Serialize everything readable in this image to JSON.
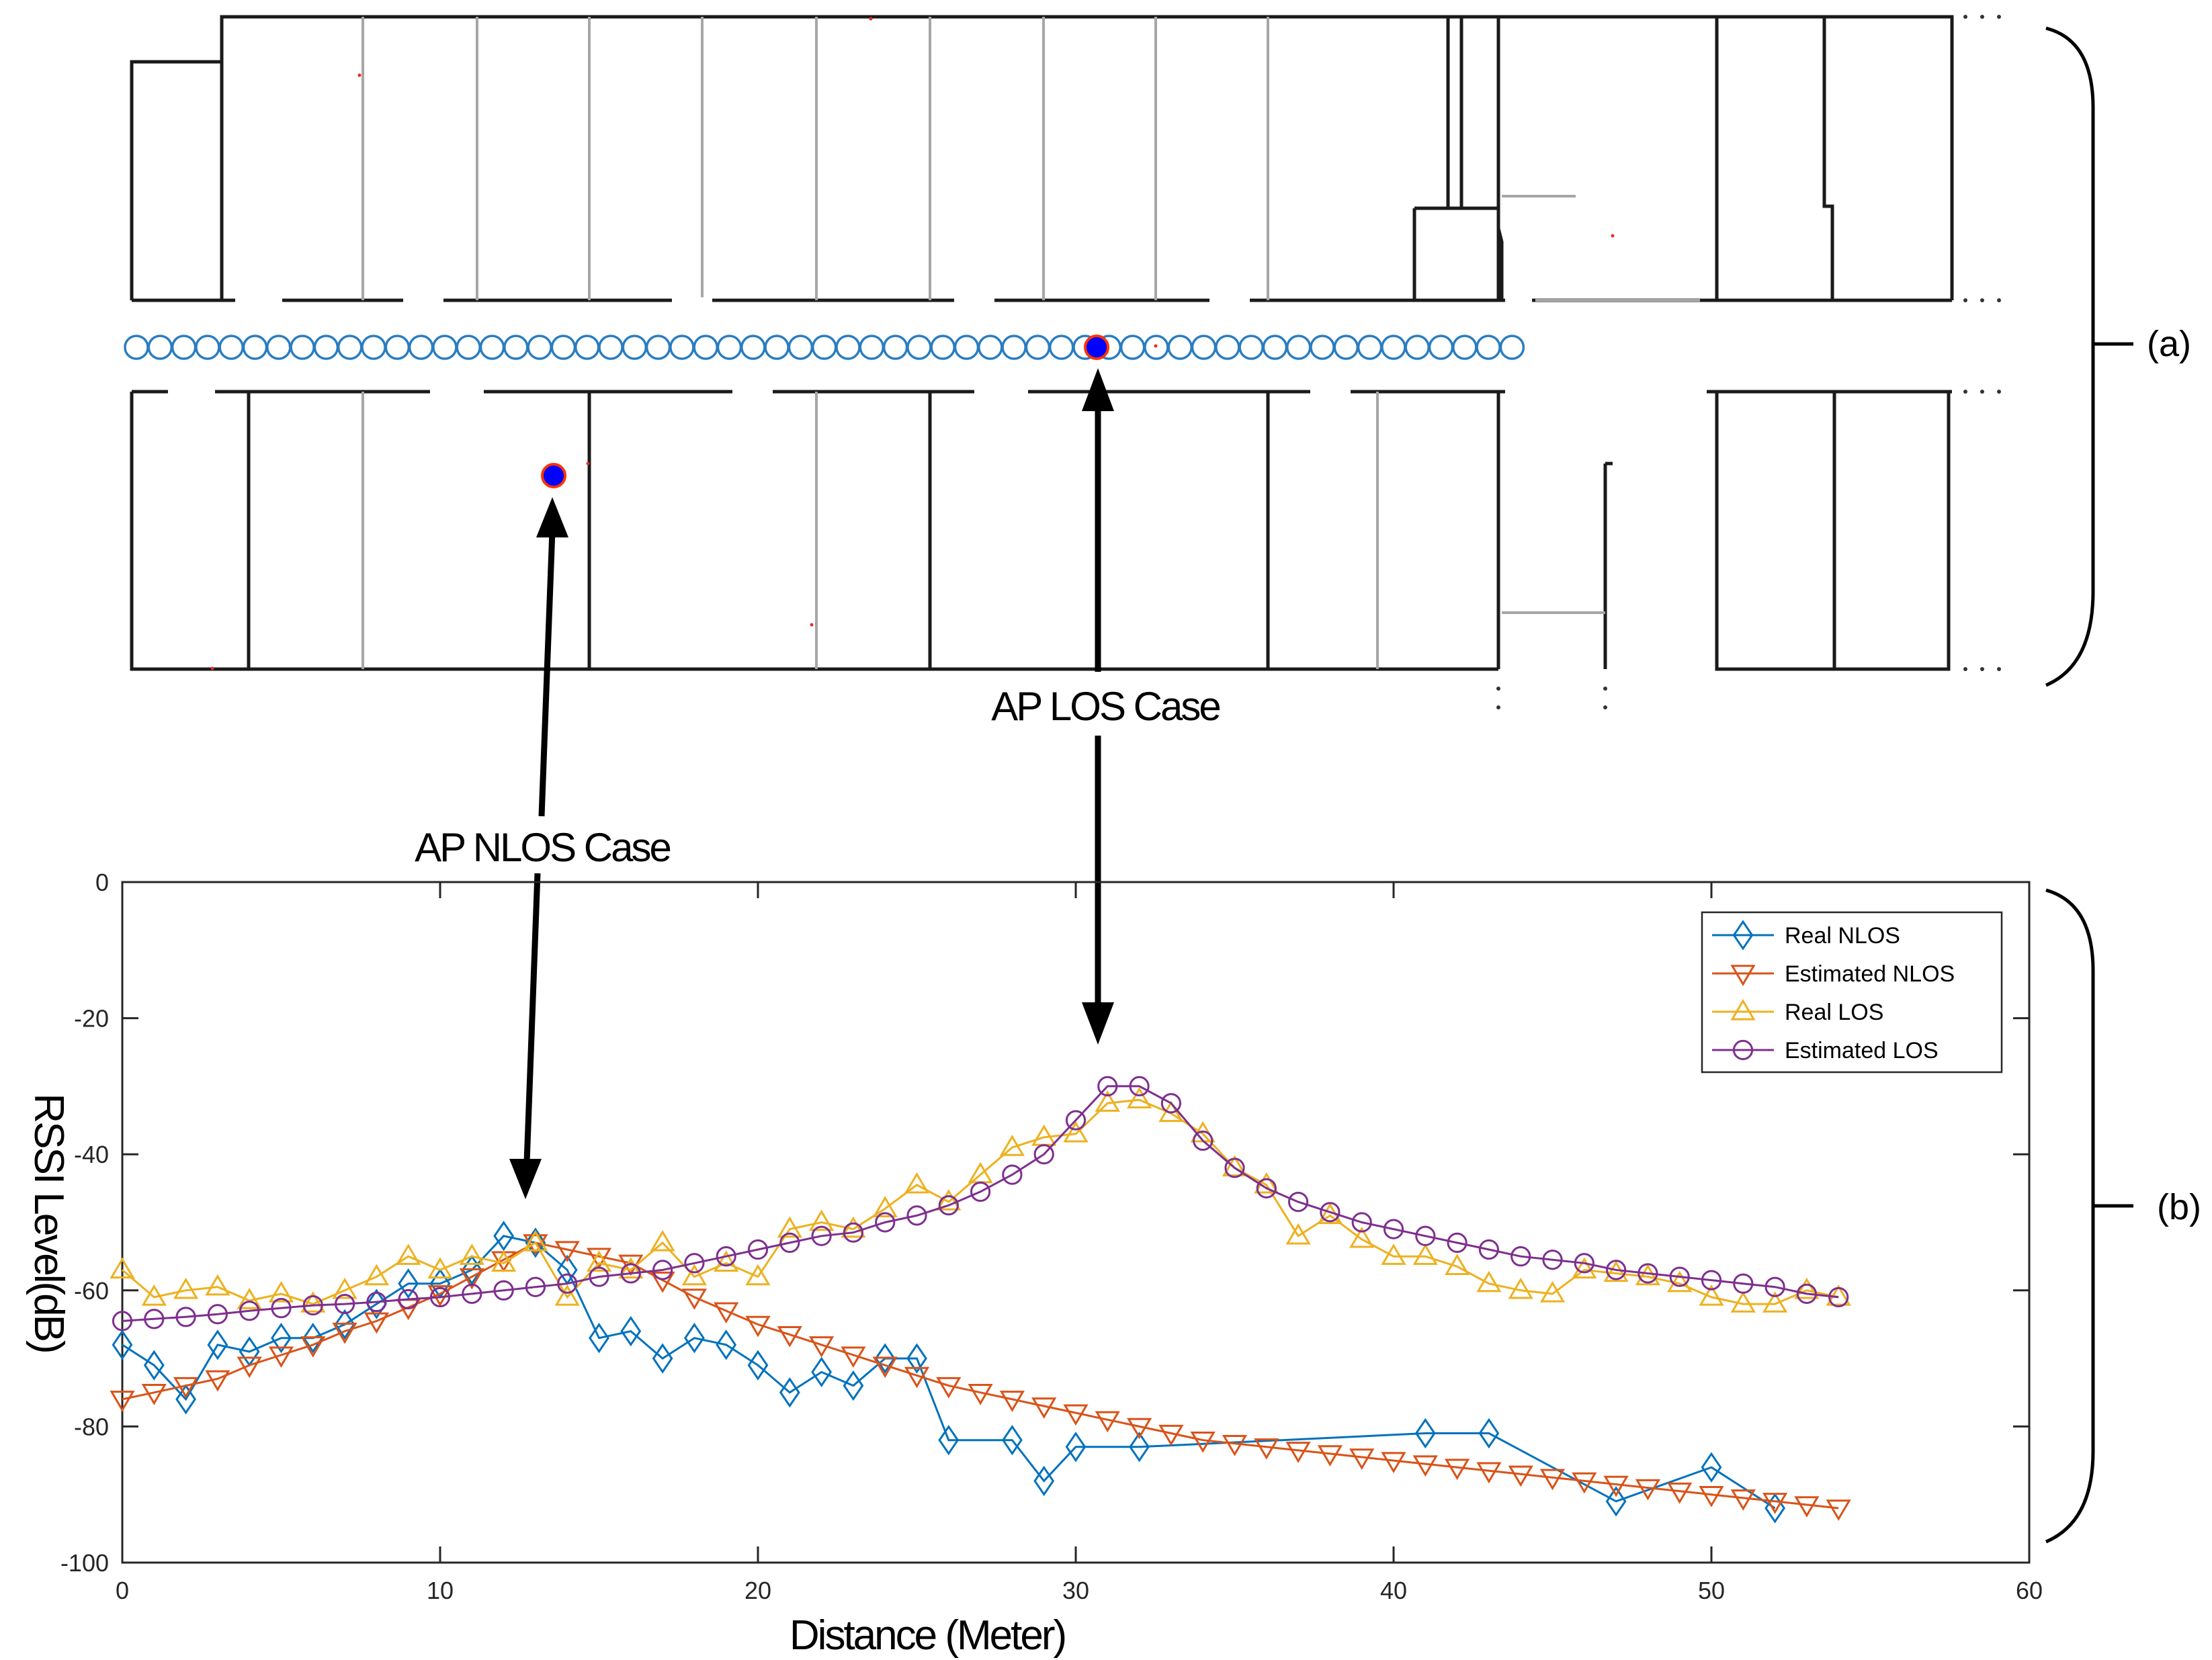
{
  "annotations": {
    "panel_a": "(a)",
    "panel_b": "(b)",
    "nlos_case": "AP NLOS Case",
    "los_case": "AP LOS Case"
  },
  "floor_plan": {
    "walkway_points": 59,
    "access_points": [
      "AP LOS Case",
      "AP NLOS Case"
    ],
    "colors": {
      "walls": "#1a1a1a",
      "partitions": "#a6a6a6",
      "points": "#2a7dc0",
      "ap_fill": "#0000ff",
      "ap_edge": "#ff3300"
    }
  },
  "chart_data": {
    "type": "line",
    "title": "",
    "xlabel": "Distance (Meter)",
    "ylabel": "RSSI Level(dB)",
    "xlim": [
      0,
      60
    ],
    "ylim": [
      -100,
      0
    ],
    "xticks": [
      "0",
      "10",
      "20",
      "30",
      "40",
      "50",
      "60"
    ],
    "yticks": [
      "0",
      "-20",
      "-40",
      "-60",
      "-80",
      "-100"
    ],
    "legend_position": "top-right",
    "grid": false,
    "series": [
      {
        "name": "Real NLOS",
        "color": "#0072BD",
        "marker": "diamond",
        "x": [
          0,
          1,
          2,
          3,
          4,
          5,
          6,
          7,
          8,
          9,
          10,
          11,
          12,
          13,
          14,
          15,
          16,
          17,
          18,
          19,
          20,
          21,
          22,
          23,
          24,
          25,
          26,
          28,
          29,
          30,
          32,
          41,
          43,
          47,
          50,
          52
        ],
        "y": [
          -68,
          -71,
          -76,
          -68,
          -69,
          -67,
          -67,
          -65,
          -62,
          -59,
          -59,
          -57,
          -52,
          -53,
          -57,
          -67,
          -66,
          -70,
          -67,
          -68,
          -71,
          -75,
          -72,
          -74,
          -70,
          -70,
          -82,
          -82,
          -88,
          -83,
          -83,
          -81,
          -81,
          -91,
          -86,
          -92
        ]
      },
      {
        "name": "Estimated NLOS",
        "color": "#D95319",
        "marker": "triangle-down",
        "x": [
          0,
          1,
          2,
          3,
          4,
          5,
          6,
          7,
          8,
          9,
          10,
          11,
          12,
          13,
          14,
          15,
          16,
          17,
          18,
          19,
          20,
          21,
          22,
          23,
          24,
          25,
          26,
          27,
          28,
          29,
          30,
          31,
          32,
          33,
          34,
          35,
          36,
          37,
          38,
          39,
          40,
          41,
          42,
          43,
          44,
          45,
          46,
          47,
          48,
          49,
          50,
          51,
          52,
          53,
          54
        ],
        "y": [
          -76,
          -75,
          -74,
          -73,
          -71,
          -69.5,
          -68,
          -66,
          -64.5,
          -62.5,
          -60.5,
          -58,
          -55.5,
          -53,
          -54,
          -55,
          -56,
          -58.5,
          -61,
          -63,
          -65,
          -66.5,
          -68,
          -69.5,
          -71,
          -72.5,
          -74,
          -75,
          -76,
          -77,
          -78,
          -79,
          -80,
          -81,
          -82,
          -82.5,
          -83,
          -83.5,
          -84,
          -84.5,
          -85,
          -85.5,
          -86,
          -86.5,
          -87,
          -87.5,
          -88,
          -88.5,
          -89,
          -89.5,
          -90,
          -90.5,
          -91,
          -91.5,
          -92
        ]
      },
      {
        "name": "Real LOS",
        "color": "#EDB120",
        "marker": "triangle-up",
        "x": [
          0,
          1,
          2,
          3,
          4,
          5,
          6,
          7,
          8,
          9,
          10,
          11,
          12,
          13,
          14,
          15,
          16,
          17,
          18,
          19,
          20,
          21,
          22,
          23,
          24,
          25,
          26,
          27,
          28,
          29,
          30,
          31,
          32,
          33,
          34,
          35,
          36,
          37,
          38,
          39,
          40,
          41,
          42,
          43,
          44,
          45,
          46,
          47,
          48,
          49,
          50,
          51,
          52,
          53,
          54
        ],
        "y": [
          -57,
          -61,
          -60,
          -59.5,
          -61.5,
          -60.5,
          -62,
          -60,
          -58,
          -55,
          -57,
          -55,
          -56,
          -53,
          -61,
          -56,
          -57,
          -53,
          -58,
          -56,
          -58,
          -51,
          -50,
          -51,
          -48,
          -44.5,
          -47,
          -43,
          -39,
          -37.5,
          -37,
          -32.5,
          -32,
          -34,
          -37,
          -42,
          -44.5,
          -52,
          -49,
          -52.5,
          -55,
          -55,
          -56.5,
          -59,
          -60,
          -60.5,
          -57,
          -57.5,
          -58,
          -59,
          -61,
          -62,
          -62,
          -60,
          -61
        ]
      },
      {
        "name": "Estimated LOS",
        "color": "#7E2F8E",
        "marker": "circle",
        "x": [
          0,
          1,
          2,
          3,
          4,
          5,
          6,
          7,
          8,
          9,
          10,
          11,
          12,
          13,
          14,
          15,
          16,
          17,
          18,
          19,
          20,
          21,
          22,
          23,
          24,
          25,
          26,
          27,
          28,
          29,
          30,
          31,
          32,
          33,
          34,
          35,
          36,
          37,
          38,
          39,
          40,
          41,
          42,
          43,
          44,
          45,
          46,
          47,
          48,
          49,
          50,
          51,
          52,
          53,
          54
        ],
        "y": [
          -64.5,
          -64.2,
          -63.9,
          -63.5,
          -63,
          -62.6,
          -62.2,
          -62,
          -61.7,
          -61.3,
          -61,
          -60.5,
          -60,
          -59.5,
          -59,
          -58,
          -57.5,
          -57,
          -56,
          -55,
          -54,
          -53,
          -52,
          -51.5,
          -50,
          -49,
          -47.5,
          -45.5,
          -43,
          -40,
          -35,
          -30,
          -30,
          -32.5,
          -38,
          -42,
          -45,
          -47,
          -48.5,
          -50,
          -51,
          -52,
          -53,
          -54,
          -55,
          -55.5,
          -56,
          -57,
          -57.5,
          -58,
          -58.5,
          -59,
          -59.5,
          -60.5,
          -61
        ]
      }
    ]
  }
}
